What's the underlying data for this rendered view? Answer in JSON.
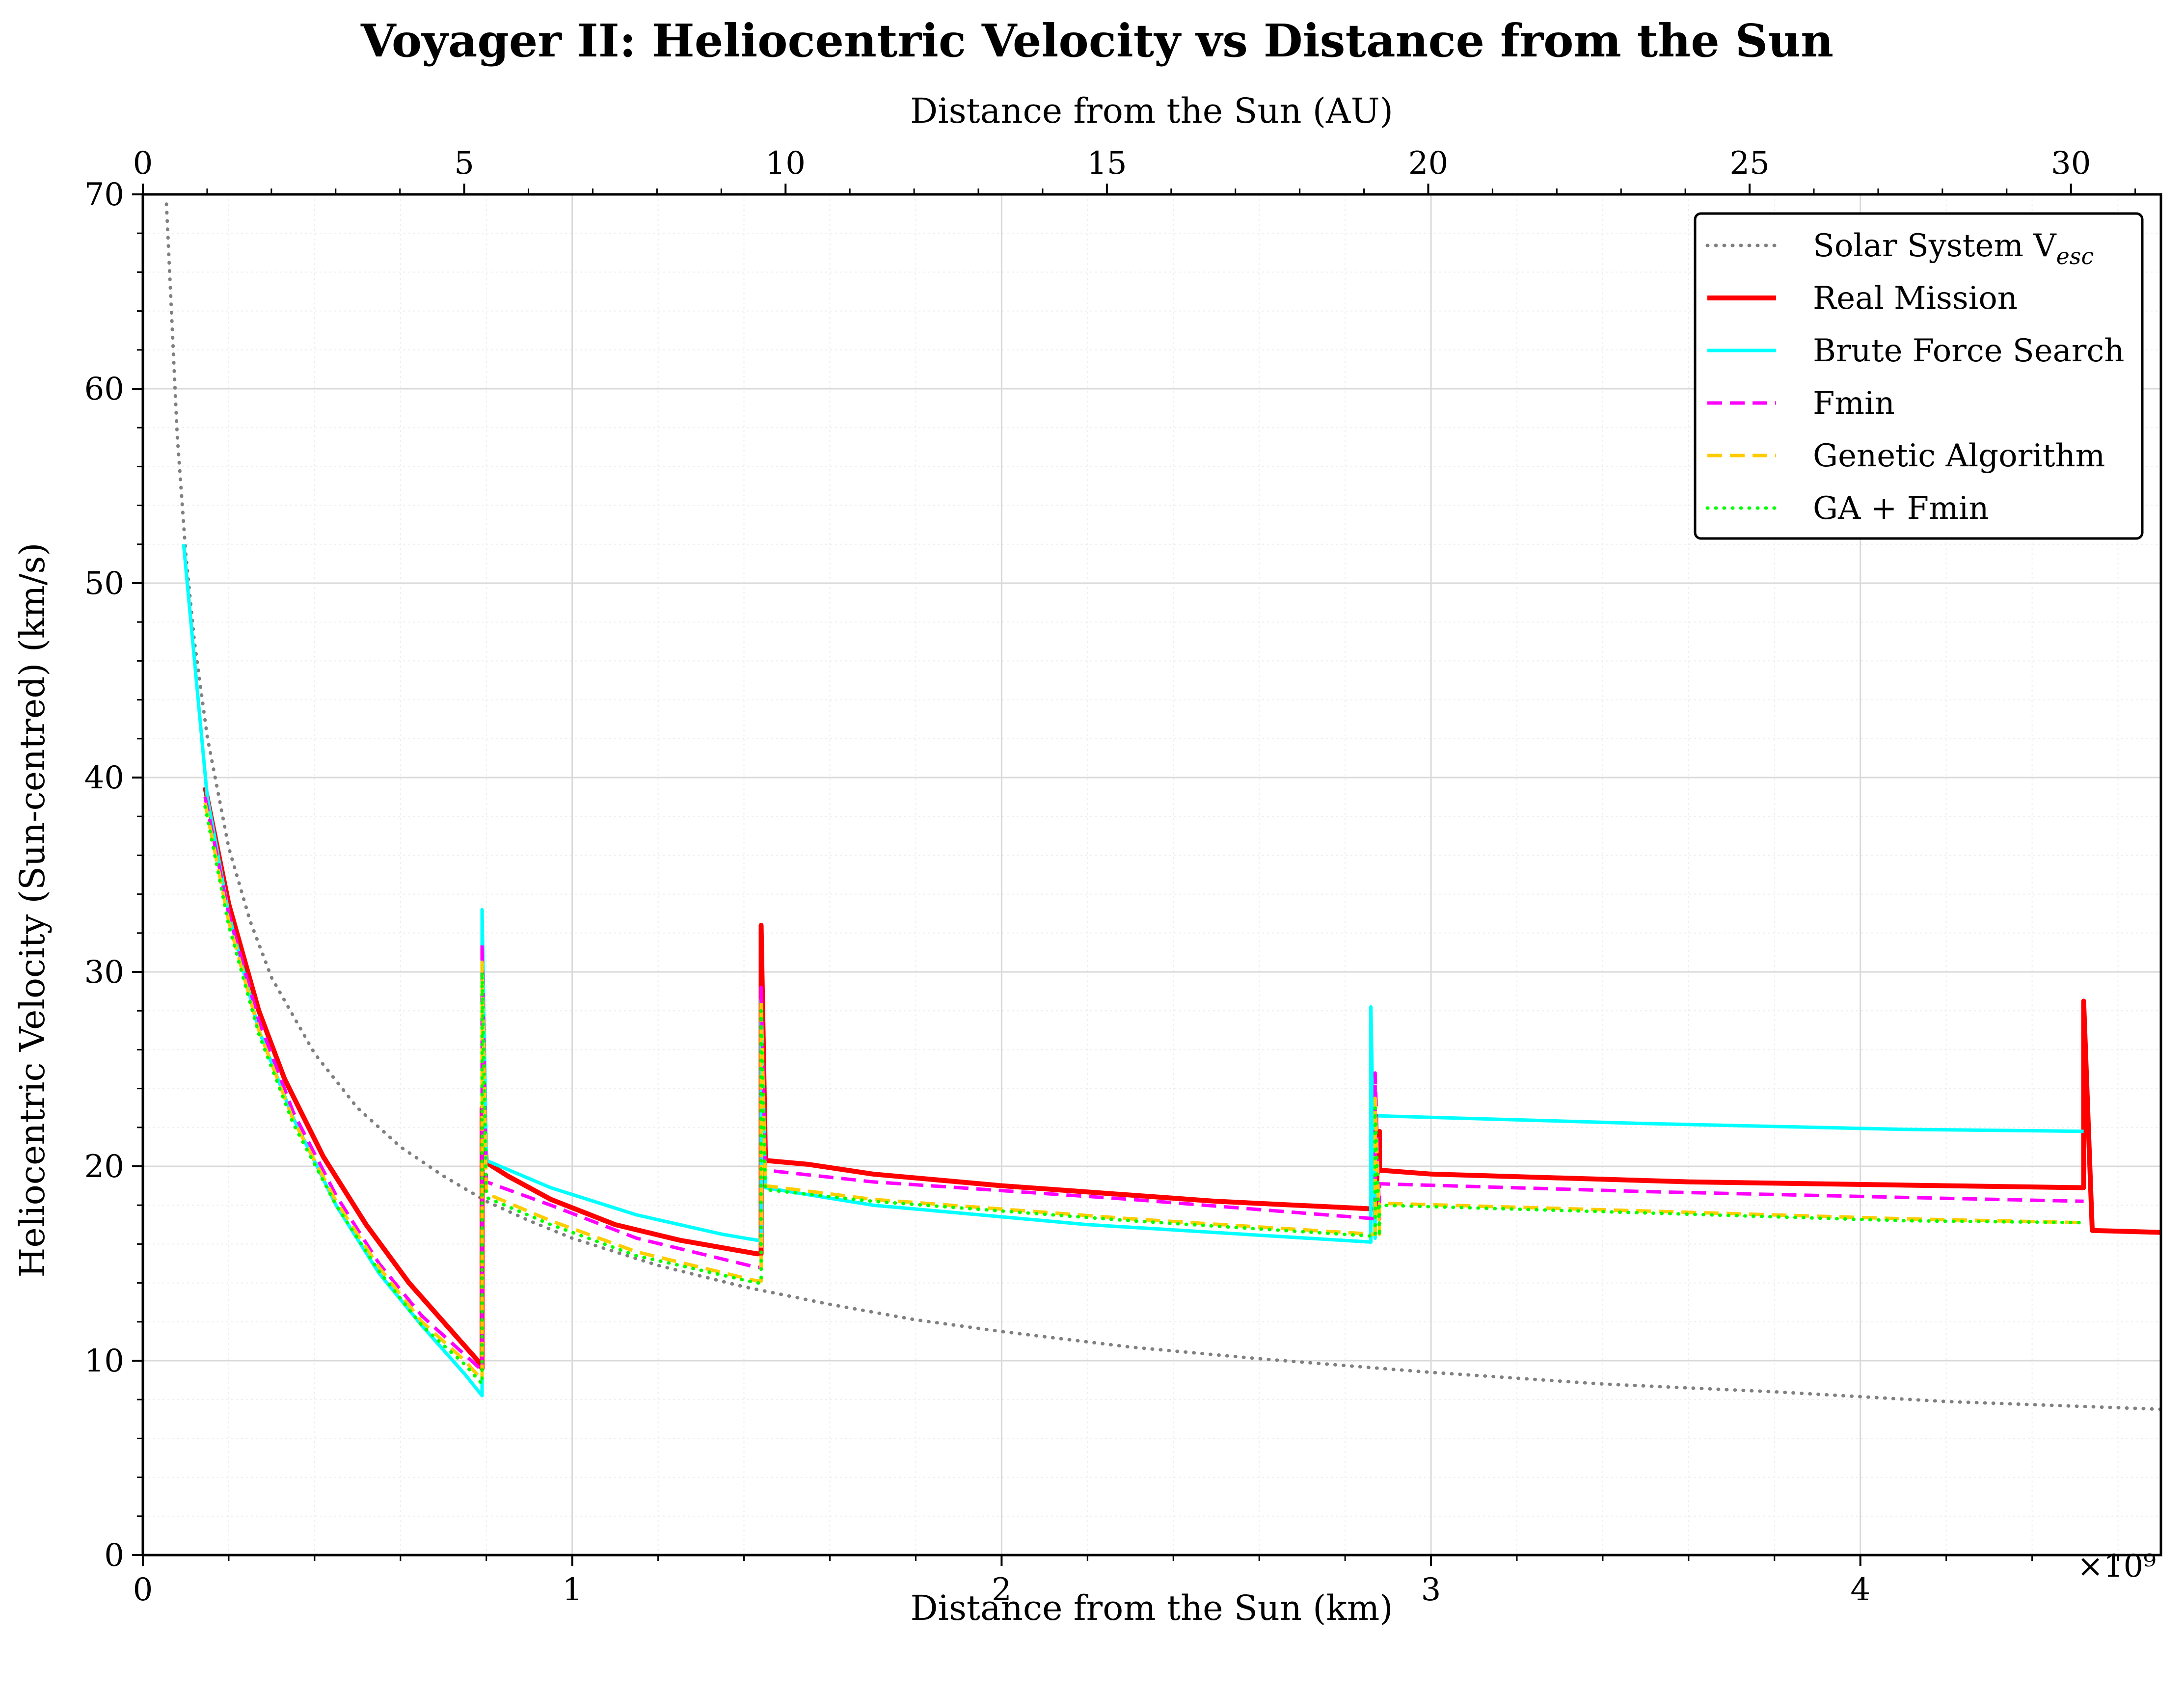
{
  "chart_data": {
    "type": "line",
    "title": "Voyager II: Heliocentric Velocity vs Distance from the Sun",
    "xlabel": "Distance from the Sun (km)",
    "ylabel": "Heliocentric Velocity (Sun-centred) (km/s)",
    "x2label": "Distance from the Sun (AU)",
    "x_multiplier": "×10⁹",
    "xlim": [
      0,
      4.7
    ],
    "ylim": [
      0,
      70
    ],
    "x2lim": [
      0,
      31.4
    ],
    "x_ticks": [
      0,
      1,
      2,
      3,
      4
    ],
    "x2_ticks": [
      0,
      5,
      10,
      15,
      20,
      25,
      30
    ],
    "y_ticks": [
      0,
      10,
      20,
      30,
      40,
      50,
      60,
      70
    ],
    "x_unit_note": "x values in units of 10^9 km",
    "grid": true,
    "legend_position": "top-right",
    "series": [
      {
        "name": "Solar System V",
        "name_sub": "esc",
        "color": "#808080",
        "style": "dotted",
        "x": [
          0.055,
          0.08,
          0.1,
          0.12,
          0.15,
          0.2,
          0.25,
          0.3,
          0.4,
          0.5,
          0.6,
          0.7,
          0.8,
          0.9,
          1.0,
          1.2,
          1.4,
          1.6,
          1.8,
          2.0,
          2.3,
          2.6,
          3.0,
          3.4,
          3.8,
          4.2,
          4.7
        ],
        "y": [
          69.5,
          57.6,
          51.5,
          47.0,
          42.1,
          36.4,
          32.6,
          29.7,
          25.8,
          23.0,
          21.0,
          19.5,
          18.2,
          17.2,
          16.3,
          14.9,
          13.8,
          12.9,
          12.1,
          11.5,
          10.7,
          10.1,
          9.4,
          8.8,
          8.4,
          7.9,
          7.5
        ]
      },
      {
        "name": "Real Mission",
        "color": "#ff0000",
        "style": "solid",
        "width": 10,
        "x": [
          0.145,
          0.2,
          0.27,
          0.33,
          0.42,
          0.52,
          0.62,
          0.7,
          0.78,
          0.79,
          0.79,
          0.8,
          0.85,
          0.95,
          1.1,
          1.25,
          1.43,
          1.44,
          1.44,
          1.45,
          1.55,
          1.7,
          2.0,
          2.5,
          2.87,
          2.87,
          2.88,
          2.88,
          3.0,
          3.6,
          4.2,
          4.52,
          4.52,
          4.54,
          4.7
        ],
        "y": [
          39.5,
          33.5,
          28.0,
          24.5,
          20.5,
          17.0,
          14.0,
          12.0,
          10.0,
          9.6,
          23.0,
          20.2,
          19.5,
          18.3,
          17.0,
          16.2,
          15.5,
          15.5,
          32.4,
          20.3,
          20.1,
          19.6,
          19.0,
          18.2,
          17.8,
          17.8,
          21.8,
          19.8,
          19.6,
          19.2,
          19.0,
          18.9,
          28.5,
          16.7,
          16.6
        ]
      },
      {
        "name": "Brute Force Search",
        "color": "#00ffff",
        "style": "solid",
        "width": 7,
        "x": [
          0.095,
          0.15,
          0.2,
          0.27,
          0.35,
          0.45,
          0.55,
          0.65,
          0.75,
          0.79,
          0.79,
          0.8,
          0.95,
          1.15,
          1.35,
          1.43,
          1.44,
          1.44,
          1.45,
          1.7,
          2.2,
          2.86,
          2.86,
          2.87,
          2.87,
          3.5,
          4.1,
          4.52
        ],
        "y": [
          52.0,
          39.0,
          33.0,
          27.0,
          22.5,
          18.0,
          14.5,
          11.8,
          9.3,
          8.2,
          33.2,
          20.3,
          18.9,
          17.5,
          16.5,
          16.2,
          16.2,
          28.8,
          18.9,
          18.0,
          17.0,
          16.1,
          28.2,
          16.3,
          22.6,
          22.2,
          21.9,
          21.8
        ]
      },
      {
        "name": "Fmin",
        "color": "#ff00ff",
        "style": "dashed",
        "width": 7,
        "x": [
          0.145,
          0.2,
          0.27,
          0.35,
          0.45,
          0.55,
          0.65,
          0.75,
          0.79,
          0.79,
          0.8,
          0.95,
          1.15,
          1.43,
          1.44,
          1.44,
          1.45,
          1.7,
          2.3,
          2.87,
          2.87,
          2.88,
          2.88,
          3.5,
          4.1,
          4.52
        ],
        "y": [
          39.0,
          33.0,
          27.5,
          22.8,
          18.5,
          15.0,
          12.3,
          10.3,
          9.5,
          31.5,
          19.2,
          18.0,
          16.3,
          14.8,
          14.8,
          29.2,
          19.8,
          19.2,
          18.3,
          17.3,
          24.8,
          17.3,
          19.1,
          18.7,
          18.4,
          18.2
        ]
      },
      {
        "name": "Genetic Algorithm",
        "color": "#ffcc00",
        "style": "dashed",
        "width": 7,
        "x": [
          0.145,
          0.2,
          0.27,
          0.35,
          0.45,
          0.55,
          0.65,
          0.75,
          0.79,
          0.79,
          0.8,
          0.95,
          1.15,
          1.43,
          1.44,
          1.44,
          1.45,
          1.7,
          2.3,
          2.87,
          2.87,
          2.88,
          2.88,
          3.5,
          4.1,
          4.52
        ],
        "y": [
          38.7,
          32.6,
          27.0,
          22.4,
          18.2,
          14.8,
          12.0,
          10.0,
          9.0,
          30.5,
          18.6,
          17.2,
          15.6,
          14.1,
          14.1,
          28.5,
          19.0,
          18.3,
          17.3,
          16.5,
          23.5,
          16.5,
          18.1,
          17.7,
          17.3,
          17.1
        ]
      },
      {
        "name": "GA + Fmin",
        "color": "#00ff00",
        "style": "dotted",
        "width": 7,
        "x": [
          0.145,
          0.2,
          0.27,
          0.35,
          0.45,
          0.55,
          0.65,
          0.75,
          0.79,
          0.79,
          0.8,
          0.95,
          1.15,
          1.43,
          1.44,
          1.44,
          1.45,
          1.7,
          2.3,
          2.87,
          2.87,
          2.88,
          2.88,
          3.5,
          4.1,
          4.52
        ],
        "y": [
          38.5,
          32.4,
          26.8,
          22.2,
          18.0,
          14.6,
          11.8,
          9.8,
          8.8,
          30.0,
          18.4,
          17.0,
          15.4,
          14.0,
          14.0,
          28.0,
          18.8,
          18.2,
          17.2,
          16.4,
          23.0,
          16.4,
          18.0,
          17.6,
          17.2,
          17.1
        ]
      }
    ]
  }
}
